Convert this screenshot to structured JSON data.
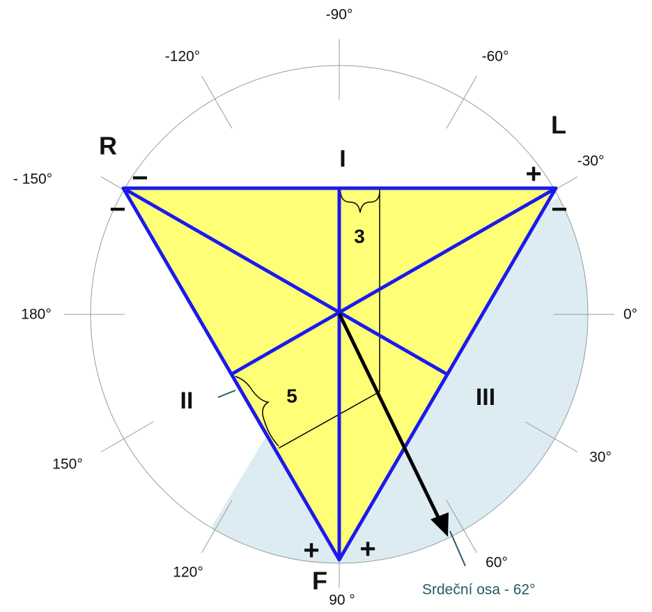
{
  "angles": [
    "-90°",
    "-60°",
    "-30°",
    "0°",
    "30°",
    "60°",
    "90 °",
    "120°",
    "150°",
    "180°",
    "- 150°",
    "-120°"
  ],
  "electrodes": {
    "right": "R",
    "left": "L",
    "foot": "F"
  },
  "leads": {
    "lead_1": "I",
    "lead_2": "II",
    "lead_3": "III"
  },
  "projections": {
    "lead_1": "3",
    "lead_2": "5"
  },
  "signs": [
    "−",
    "+",
    "−",
    "−",
    "+",
    "+"
  ],
  "axis_label": "Srdeční osa - 62°"
}
